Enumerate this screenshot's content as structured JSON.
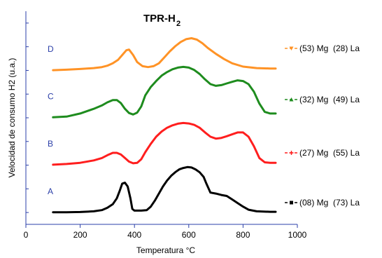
{
  "chart_data": {
    "type": "line",
    "title": "TPR-H",
    "title_subscript": "2",
    "xlabel": "Temperatura °C",
    "ylabel": "Velocidad de consumo H2 (u.a.)",
    "xlim": [
      0,
      1000
    ],
    "xticks": [
      "0",
      "200",
      "400",
      "600",
      "800",
      "1000"
    ],
    "y_unit": "u.a.",
    "y_offsets": [
      0,
      2,
      4,
      6
    ],
    "ylim": [
      -0.5,
      8.5
    ],
    "grid": false,
    "legend_position": "right",
    "series": [
      {
        "name": "(08) Mg  (73) La",
        "letter": "A",
        "color": "#000000",
        "marker": "square",
        "x": [
          100,
          150,
          200,
          250,
          280,
          300,
          320,
          335,
          345,
          355,
          365,
          375,
          385,
          392,
          400,
          410,
          425,
          445,
          460,
          475,
          490,
          505,
          520,
          535,
          550,
          565,
          580,
          595,
          610,
          625,
          640,
          655,
          665,
          680,
          700,
          720,
          740,
          760,
          780,
          800,
          820,
          850,
          900,
          920
        ],
        "y": [
          0.01,
          0.01,
          0.02,
          0.05,
          0.1,
          0.2,
          0.35,
          0.6,
          0.9,
          1.22,
          1.26,
          1.1,
          0.6,
          0.15,
          0.08,
          0.08,
          0.08,
          0.1,
          0.25,
          0.5,
          0.8,
          1.1,
          1.35,
          1.55,
          1.7,
          1.82,
          1.88,
          1.92,
          1.9,
          1.82,
          1.7,
          1.5,
          1.22,
          0.84,
          0.8,
          0.74,
          0.7,
          0.55,
          0.4,
          0.25,
          0.12,
          0.05,
          0.03,
          0.03
        ]
      },
      {
        "name": "(27) Mg  (55) La",
        "letter": "B",
        "color": "#ff1e1e",
        "marker": "plus",
        "x": [
          100,
          150,
          200,
          250,
          280,
          300,
          320,
          335,
          350,
          365,
          380,
          395,
          410,
          425,
          440,
          460,
          480,
          500,
          520,
          540,
          560,
          580,
          600,
          620,
          640,
          660,
          680,
          700,
          720,
          740,
          760,
          780,
          800,
          820,
          840,
          860,
          880,
          900,
          920
        ],
        "y": [
          0.02,
          0.05,
          0.1,
          0.2,
          0.3,
          0.42,
          0.52,
          0.52,
          0.45,
          0.3,
          0.15,
          0.08,
          0.1,
          0.25,
          0.55,
          0.9,
          1.2,
          1.42,
          1.58,
          1.68,
          1.75,
          1.78,
          1.76,
          1.7,
          1.58,
          1.38,
          1.2,
          1.12,
          1.15,
          1.22,
          1.3,
          1.38,
          1.38,
          1.2,
          0.8,
          0.3,
          0.12,
          0.1,
          0.1
        ]
      },
      {
        "name": "(32) Mg  (49) La",
        "letter": "C",
        "color": "#1e8c1e",
        "marker": "triangle",
        "x": [
          100,
          150,
          200,
          250,
          280,
          300,
          320,
          335,
          350,
          365,
          380,
          395,
          410,
          425,
          440,
          460,
          480,
          500,
          520,
          540,
          560,
          580,
          600,
          620,
          640,
          660,
          680,
          700,
          720,
          740,
          760,
          780,
          800,
          820,
          840,
          860,
          880,
          900,
          920
        ],
        "y": [
          0.02,
          0.05,
          0.18,
          0.38,
          0.52,
          0.65,
          0.75,
          0.75,
          0.62,
          0.38,
          0.2,
          0.14,
          0.22,
          0.48,
          0.95,
          1.3,
          1.55,
          1.78,
          1.93,
          2.05,
          2.12,
          2.15,
          2.12,
          2.02,
          1.85,
          1.62,
          1.42,
          1.35,
          1.38,
          1.45,
          1.52,
          1.58,
          1.55,
          1.42,
          1.1,
          0.6,
          0.25,
          0.18,
          0.18
        ]
      },
      {
        "name": "(53) Mg  (28) La",
        "letter": "D",
        "color": "#ff9326",
        "marker": "triangle-down",
        "x": [
          100,
          150,
          200,
          250,
          280,
          300,
          320,
          340,
          355,
          370,
          380,
          395,
          410,
          430,
          450,
          470,
          490,
          510,
          530,
          550,
          570,
          590,
          610,
          630,
          650,
          670,
          700,
          730,
          760,
          800,
          850,
          900,
          920
        ],
        "y": [
          0.01,
          0.03,
          0.06,
          0.1,
          0.14,
          0.2,
          0.3,
          0.45,
          0.65,
          0.85,
          0.88,
          0.65,
          0.35,
          0.18,
          0.14,
          0.18,
          0.3,
          0.55,
          0.8,
          1.02,
          1.2,
          1.32,
          1.36,
          1.3,
          1.15,
          0.95,
          0.7,
          0.48,
          0.3,
          0.16,
          0.1,
          0.08,
          0.08
        ]
      }
    ]
  }
}
